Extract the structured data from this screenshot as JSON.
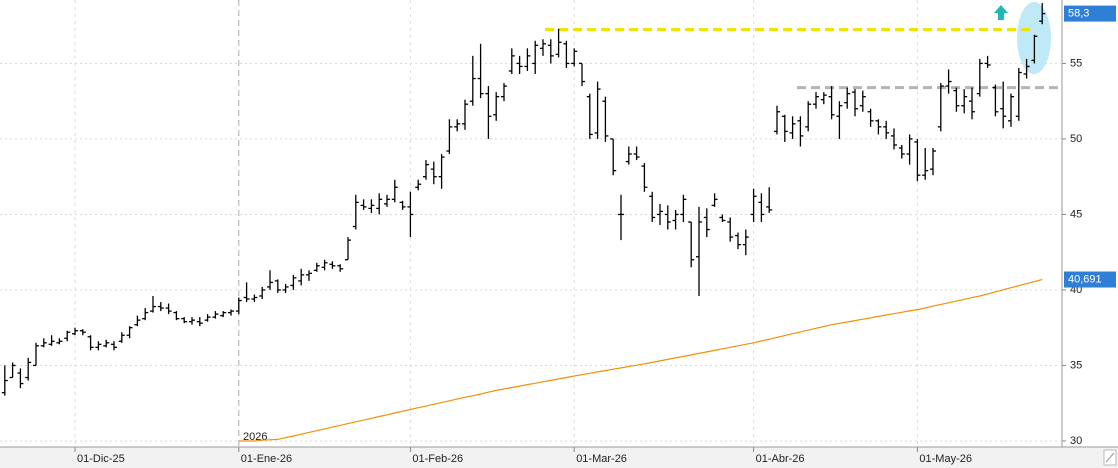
{
  "chart_data": {
    "type": "ohlc",
    "color": "#000000",
    "grid": true,
    "ylim": [
      29.6,
      59.2
    ],
    "yticks": [
      30,
      35,
      40,
      45,
      50,
      55
    ],
    "year_label": "2026",
    "categories": [
      null,
      null,
      null,
      null,
      null,
      null,
      null,
      null,
      null,
      "01-Dic-25",
      null,
      null,
      null,
      null,
      null,
      null,
      null,
      null,
      null,
      null,
      null,
      null,
      null,
      null,
      null,
      null,
      null,
      null,
      null,
      null,
      "01-Ene-26",
      null,
      null,
      null,
      null,
      null,
      null,
      null,
      null,
      null,
      null,
      null,
      null,
      null,
      null,
      null,
      null,
      null,
      null,
      null,
      null,
      null,
      "01-Feb-26",
      null,
      null,
      null,
      null,
      null,
      null,
      null,
      null,
      null,
      null,
      null,
      null,
      null,
      null,
      null,
      null,
      null,
      null,
      null,
      null,
      "01-Mar-26",
      null,
      null,
      null,
      null,
      null,
      null,
      null,
      null,
      null,
      null,
      null,
      null,
      null,
      null,
      null,
      null,
      null,
      null,
      null,
      null,
      null,
      null,
      "01-Abr-26",
      null,
      null,
      null,
      null,
      null,
      null,
      null,
      null,
      null,
      null,
      null,
      null,
      null,
      null,
      null,
      null,
      null,
      null,
      null,
      null,
      "01-May-26",
      null,
      null,
      null,
      null,
      null,
      null,
      null,
      null,
      null,
      null,
      null,
      null,
      null,
      null,
      null,
      null
    ],
    "open": [
      33.2,
      34.2,
      34.5,
      34.2,
      35.0,
      36.3,
      36.4,
      36.5,
      36.8,
      37.1,
      37.3,
      36.9,
      36.2,
      36.3,
      36.4,
      36.6,
      37.0,
      37.7,
      38.1,
      38.6,
      38.9,
      38.8,
      38.5,
      38.1,
      37.9,
      37.9,
      38.0,
      38.2,
      38.3,
      38.5,
      38.6,
      39.5,
      39.4,
      39.6,
      40.2,
      40.6,
      40.0,
      40.3,
      40.6,
      41.0,
      41.3,
      41.5,
      41.7,
      41.6,
      42.0,
      44.2,
      45.6,
      45.4,
      45.4,
      45.7,
      46.0,
      45.8,
      45.5,
      46.8,
      47.5,
      48.0,
      47.5,
      49.2,
      50.8,
      51.0,
      52.5,
      54.0,
      53.0,
      51.6,
      52.8,
      54.5,
      55.0,
      54.8,
      55.0,
      56.0,
      56.2,
      55.6,
      56.3,
      55.0,
      55.0,
      52.8,
      50.4,
      52.5,
      50.0,
      45.0,
      48.5,
      49.0,
      48.2,
      46.2,
      45.0,
      45.0,
      44.6,
      45.0,
      44.5,
      42.2,
      44.8,
      45.6,
      44.8,
      44.5,
      43.6,
      43.0,
      45.0,
      45.8,
      45.5,
      50.5,
      51.5,
      50.4,
      51.2,
      50.8,
      52.3,
      52.6,
      52.8,
      51.5,
      52.4,
      53.1,
      52.2,
      51.8,
      51.2,
      50.8,
      50.2,
      49.4,
      49.0,
      49.8,
      47.6,
      48.0,
      50.8,
      53.5,
      53.2,
      52.2,
      52.5,
      53.0,
      55.0,
      53.4,
      52.0,
      51.2,
      51.5,
      54.3,
      55.2,
      57.8
    ],
    "high": [
      35.0,
      35.2,
      34.8,
      35.5,
      36.5,
      36.8,
      37.0,
      36.8,
      37.3,
      37.5,
      37.4,
      37.0,
      36.6,
      36.7,
      36.6,
      37.2,
      37.6,
      38.3,
      38.8,
      39.6,
      39.2,
      39.1,
      38.6,
      38.2,
      38.2,
      38.2,
      38.4,
      38.6,
      38.6,
      38.7,
      39.5,
      40.5,
      39.7,
      40.2,
      41.3,
      40.7,
      40.4,
      41.0,
      41.4,
      41.3,
      41.8,
      42.0,
      41.9,
      41.7,
      43.5,
      46.3,
      46.0,
      46.0,
      46.4,
      46.3,
      47.3,
      45.9,
      46.5,
      47.3,
      48.6,
      48.5,
      49.0,
      51.3,
      51.3,
      52.6,
      55.5,
      56.3,
      53.5,
      53.1,
      53.7,
      56.0,
      55.5,
      56.0,
      56.5,
      56.6,
      56.6,
      57.3,
      56.5,
      56.0,
      55.0,
      53.0,
      53.8,
      52.8,
      50.0,
      46.3,
      49.5,
      49.5,
      48.4,
      46.5,
      45.7,
      45.6,
      45.3,
      46.3,
      44.5,
      45.5,
      45.4,
      46.4,
      45.0,
      44.8,
      43.8,
      44.0,
      46.7,
      46.4,
      46.8,
      52.2,
      51.6,
      51.5,
      51.5,
      52.5,
      53.1,
      53.1,
      53.5,
      52.5,
      53.4,
      53.3,
      53.2,
      52.0,
      51.3,
      51.2,
      50.7,
      49.6,
      50.3,
      50.0,
      49.4,
      49.4,
      53.7,
      54.6,
      53.4,
      53.3,
      53.4,
      55.3,
      55.5,
      53.6,
      53.8,
      53.0,
      54.7,
      55.3,
      56.9,
      59.0
    ],
    "low": [
      33.0,
      34.2,
      33.5,
      34.0,
      35.0,
      36.2,
      36.3,
      36.4,
      36.6,
      37.0,
      37.0,
      36.0,
      36.0,
      36.2,
      36.0,
      36.5,
      36.8,
      37.6,
      38.0,
      38.5,
      38.6,
      38.4,
      38.0,
      37.8,
      37.7,
      37.6,
      37.9,
      38.1,
      38.2,
      38.3,
      38.4,
      39.2,
      39.2,
      39.4,
      40.0,
      39.8,
      39.8,
      40.0,
      40.3,
      40.6,
      41.2,
      41.3,
      41.4,
      41.2,
      42.0,
      44.0,
      45.3,
      45.1,
      45.0,
      45.5,
      45.8,
      45.3,
      43.5,
      46.6,
      47.3,
      47.0,
      46.7,
      49.0,
      50.5,
      50.6,
      52.2,
      52.7,
      50.0,
      51.2,
      52.5,
      54.3,
      54.3,
      54.5,
      54.3,
      55.5,
      55.0,
      55.4,
      54.7,
      54.8,
      53.5,
      50.0,
      50.0,
      49.8,
      47.6,
      43.3,
      48.3,
      48.6,
      46.5,
      44.5,
      44.3,
      44.0,
      44.0,
      44.5,
      41.5,
      39.6,
      43.5,
      45.5,
      44.5,
      43.2,
      42.7,
      42.3,
      44.5,
      44.5,
      45.1,
      50.3,
      49.8,
      50.0,
      49.5,
      50.5,
      52.0,
      52.3,
      51.3,
      50.0,
      52.0,
      51.5,
      51.8,
      50.8,
      50.3,
      50.0,
      49.3,
      48.7,
      48.3,
      47.2,
      47.3,
      47.6,
      50.5,
      53.0,
      51.8,
      51.7,
      51.3,
      52.8,
      54.7,
      51.5,
      50.7,
      50.8,
      51.2,
      54.0,
      55.0,
      57.6
    ],
    "close": [
      34.0,
      35.0,
      33.8,
      35.2,
      36.3,
      36.5,
      36.6,
      36.6,
      37.2,
      37.3,
      37.2,
      36.2,
      36.4,
      36.5,
      36.2,
      37.0,
      37.5,
      38.0,
      38.5,
      38.9,
      38.8,
      38.6,
      38.1,
      37.9,
      38.0,
      37.8,
      38.2,
      38.4,
      38.5,
      38.6,
      39.3,
      39.4,
      39.5,
      40.0,
      40.5,
      40.0,
      40.2,
      40.8,
      41.0,
      41.1,
      41.6,
      41.8,
      41.6,
      41.4,
      43.3,
      45.8,
      45.5,
      45.6,
      46.0,
      46.0,
      46.8,
      45.5,
      45.0,
      47.0,
      48.3,
      47.5,
      48.8,
      50.8,
      51.0,
      52.3,
      54.0,
      53.0,
      51.5,
      52.8,
      53.5,
      55.5,
      54.8,
      55.5,
      56.2,
      56.3,
      55.5,
      56.4,
      55.0,
      55.8,
      53.8,
      50.3,
      53.3,
      50.2,
      47.9,
      45.0,
      49.0,
      48.8,
      46.8,
      44.8,
      45.2,
      44.5,
      45.0,
      46.0,
      42.0,
      44.5,
      44.0,
      46.0,
      44.6,
      43.5,
      43.0,
      43.5,
      46.2,
      45.0,
      45.3,
      51.8,
      50.5,
      51.0,
      50.2,
      52.3,
      52.8,
      52.9,
      51.6,
      52.2,
      53.0,
      52.0,
      52.8,
      51.2,
      50.8,
      50.4,
      49.6,
      49.0,
      50.0,
      47.6,
      47.9,
      49.2,
      53.5,
      53.8,
      52.2,
      52.8,
      51.8,
      55.0,
      54.9,
      51.8,
      51.5,
      52.8,
      54.4,
      54.8,
      56.8,
      58.3
    ],
    "last_label": {
      "value": 58.3,
      "label": "58,3"
    },
    "levels": [
      {
        "value": 57.25,
        "color": "#f2e200"
      },
      {
        "value": 53.4,
        "color": "#b4b4b4"
      }
    ],
    "ma": {
      "color": "#f0920a",
      "last_label": {
        "value": 40.691,
        "label": "40,691"
      },
      "values": [
        null,
        null,
        null,
        null,
        null,
        null,
        null,
        null,
        null,
        null,
        null,
        null,
        null,
        null,
        null,
        null,
        null,
        null,
        null,
        null,
        null,
        null,
        null,
        null,
        null,
        null,
        null,
        null,
        null,
        null,
        30.0,
        30.0,
        30.0,
        30.05,
        30.08,
        30.1,
        30.22,
        30.33,
        30.45,
        30.57,
        30.68,
        30.8,
        30.92,
        31.03,
        31.15,
        31.27,
        31.38,
        31.5,
        31.62,
        31.73,
        31.85,
        31.97,
        32.08,
        32.2,
        32.31,
        32.43,
        32.54,
        32.66,
        32.77,
        32.89,
        33.0,
        33.11,
        33.23,
        33.35,
        33.44,
        33.54,
        33.63,
        33.73,
        33.82,
        33.92,
        34.01,
        34.11,
        34.2,
        34.3,
        34.39,
        34.48,
        34.57,
        34.66,
        34.75,
        34.84,
        34.93,
        35.02,
        35.11,
        35.2,
        35.3,
        35.4,
        35.5,
        35.6,
        35.7,
        35.8,
        35.9,
        36.0,
        36.1,
        36.2,
        36.3,
        36.4,
        36.5,
        36.62,
        36.74,
        36.86,
        36.98,
        37.1,
        37.22,
        37.34,
        37.46,
        37.58,
        37.7,
        37.79,
        37.88,
        37.97,
        38.06,
        38.15,
        38.25,
        38.34,
        38.43,
        38.52,
        38.61,
        38.7,
        38.81,
        38.93,
        39.04,
        39.15,
        39.26,
        39.38,
        39.49,
        39.6,
        39.74,
        39.87,
        40.01,
        40.15,
        40.28,
        40.42,
        40.55,
        40.691
      ]
    }
  }
}
